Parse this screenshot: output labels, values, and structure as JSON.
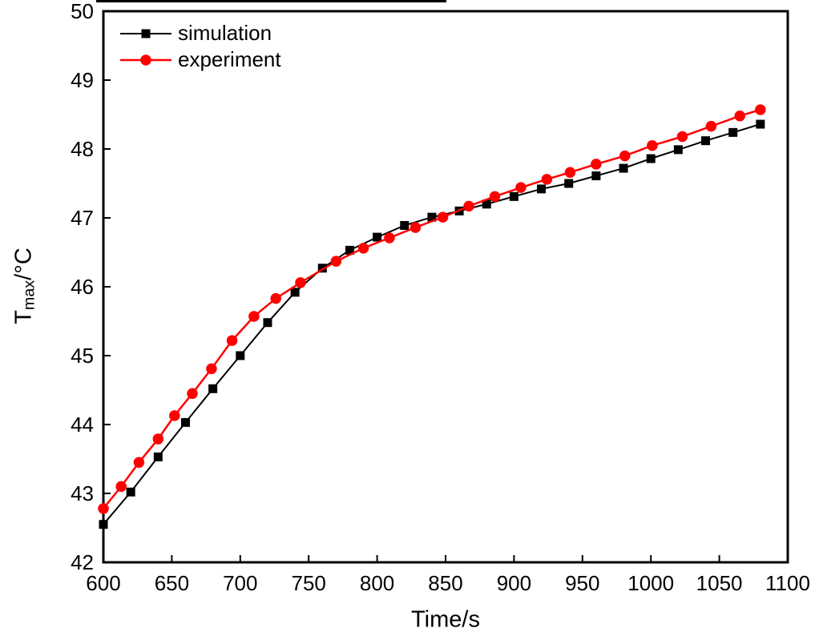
{
  "figure": {
    "background_color": "#ffffff",
    "frame_color": "#000000",
    "text_color": "#000000"
  },
  "chart_data": {
    "type": "line",
    "title": "",
    "xlabel": "Time/s",
    "ylabel": "Tmax/°C",
    "ylabel_parts": {
      "main": "T",
      "sub": "max",
      "unit": "/°C"
    },
    "xlim": [
      600,
      1100
    ],
    "ylim": [
      42,
      50
    ],
    "xticks": [
      600,
      650,
      700,
      750,
      800,
      850,
      900,
      950,
      1000,
      1050,
      1100
    ],
    "yticks": [
      42,
      43,
      44,
      45,
      46,
      47,
      48,
      49,
      50
    ],
    "grid": false,
    "legend": {
      "position": "top-left-inside",
      "entries": [
        "simulation",
        "experiment"
      ]
    },
    "series": [
      {
        "name": "simulation",
        "color": "#000000",
        "marker": "square",
        "marker_size": 11,
        "line_width": 2,
        "points": [
          [
            600,
            42.55
          ],
          [
            620,
            43.02
          ],
          [
            640,
            43.53
          ],
          [
            660,
            44.03
          ],
          [
            680,
            44.52
          ],
          [
            700,
            45.0
          ],
          [
            720,
            45.48
          ],
          [
            740,
            45.92
          ],
          [
            760,
            46.27
          ],
          [
            780,
            46.53
          ],
          [
            800,
            46.72
          ],
          [
            820,
            46.89
          ],
          [
            840,
            47.01
          ],
          [
            860,
            47.1
          ],
          [
            880,
            47.2
          ],
          [
            900,
            47.31
          ],
          [
            920,
            47.42
          ],
          [
            940,
            47.5
          ],
          [
            960,
            47.61
          ],
          [
            980,
            47.72
          ],
          [
            1000,
            47.86
          ],
          [
            1020,
            47.99
          ],
          [
            1040,
            48.12
          ],
          [
            1060,
            48.24
          ],
          [
            1080,
            48.36
          ]
        ]
      },
      {
        "name": "experiment",
        "color": "#ff0000",
        "marker": "circle",
        "marker_size": 13.5,
        "line_width": 2.5,
        "points": [
          [
            600,
            42.78
          ],
          [
            613,
            43.1
          ],
          [
            626,
            43.45
          ],
          [
            640,
            43.79
          ],
          [
            652,
            44.13
          ],
          [
            665,
            44.45
          ],
          [
            679,
            44.81
          ],
          [
            694,
            45.22
          ],
          [
            710,
            45.57
          ],
          [
            726,
            45.83
          ],
          [
            744,
            46.06
          ],
          [
            770,
            46.37
          ],
          [
            790,
            46.56
          ],
          [
            809,
            46.71
          ],
          [
            828,
            46.86
          ],
          [
            848,
            47.01
          ],
          [
            867,
            47.17
          ],
          [
            886,
            47.31
          ],
          [
            905,
            47.44
          ],
          [
            924,
            47.56
          ],
          [
            941,
            47.66
          ],
          [
            960,
            47.78
          ],
          [
            981,
            47.9
          ],
          [
            1001,
            48.05
          ],
          [
            1023,
            48.18
          ],
          [
            1044,
            48.33
          ],
          [
            1065,
            48.48
          ],
          [
            1080,
            48.57
          ]
        ]
      }
    ]
  }
}
